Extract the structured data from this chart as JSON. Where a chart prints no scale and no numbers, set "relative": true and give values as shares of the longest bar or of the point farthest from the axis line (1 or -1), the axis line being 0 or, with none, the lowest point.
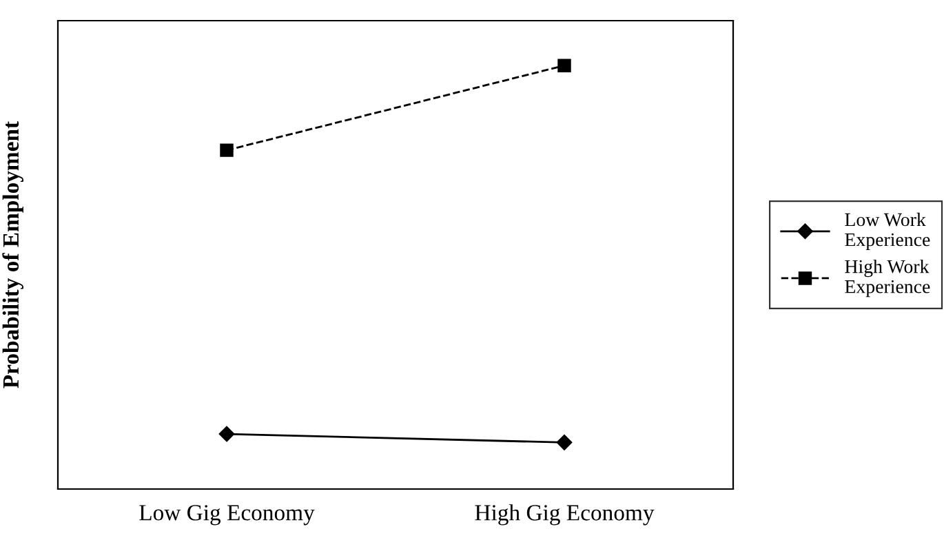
{
  "chart_data": {
    "type": "line",
    "ylabel": "Probability of Employment",
    "categories": [
      "Low Gig Economy",
      "High Gig Economy"
    ],
    "relative": true,
    "legend": "right",
    "grid": false,
    "series": [
      {
        "name": "Low Work Experience",
        "color": "#000000",
        "marker": "diamond",
        "line_style": "solid",
        "values": [
          0.13,
          0.11
        ]
      },
      {
        "name": "High Work Experience",
        "color": "#000000",
        "marker": "square",
        "line_style": "dashed",
        "values": [
          0.8,
          1
        ]
      }
    ]
  }
}
